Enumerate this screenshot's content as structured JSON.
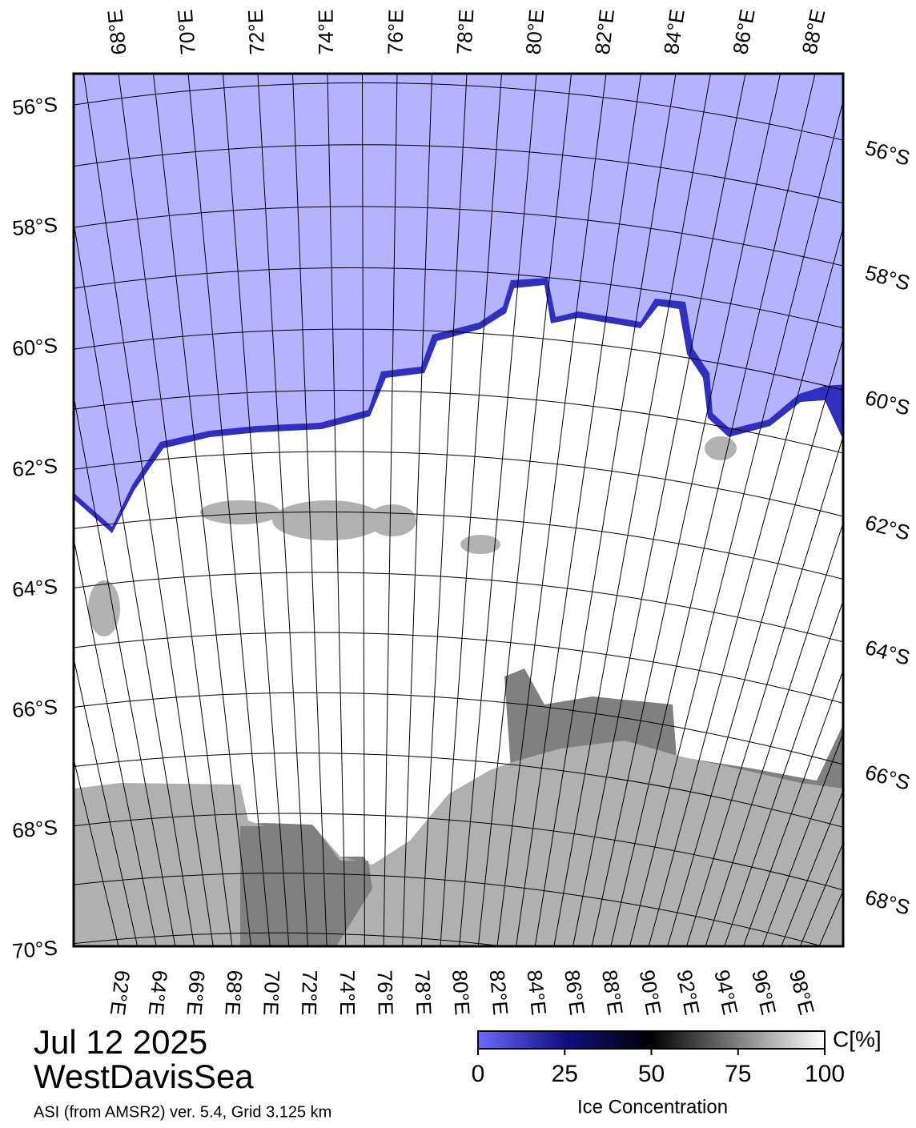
{
  "map": {
    "top_lon_labels": [
      "68°E",
      "70°E",
      "72°E",
      "74°E",
      "76°E",
      "78°E",
      "80°E",
      "82°E",
      "84°E",
      "86°E",
      "88°E"
    ],
    "bottom_lon_labels": [
      "62°E",
      "64°E",
      "66°E",
      "68°E",
      "70°E",
      "72°E",
      "74°E",
      "76°E",
      "78°E",
      "80°E",
      "82°E",
      "84°E",
      "86°E",
      "88°E",
      "90°E",
      "92°E",
      "94°E",
      "96°E",
      "98°E"
    ],
    "left_lat_labels": [
      "56°S",
      "58°S",
      "60°S",
      "62°S",
      "64°S",
      "66°S",
      "68°S",
      "70°S"
    ],
    "right_lat_labels": [
      "56°S",
      "58°S",
      "60°S",
      "62°S",
      "64°S",
      "66°S",
      "68°S"
    ]
  },
  "caption": {
    "date": "Jul 12 2025",
    "region": "WestDavisSea",
    "source": "ASI (from AMSR2) ver. 5.4,  Grid 3.125 km"
  },
  "colorbar": {
    "unit": "C[%]",
    "label": "Ice Concentration",
    "lim": [
      0,
      100
    ],
    "ticks": [
      0,
      25,
      50,
      75,
      100
    ]
  }
}
